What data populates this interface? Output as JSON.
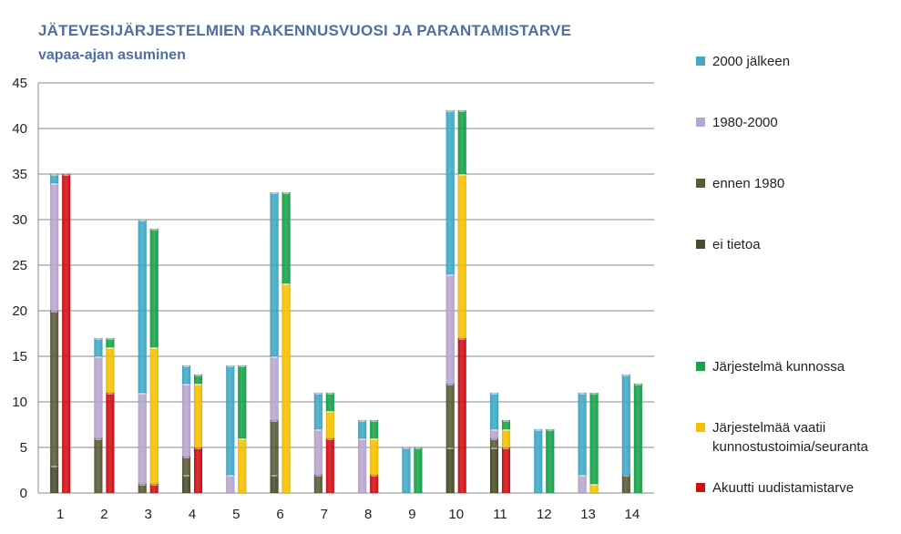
{
  "chart_data": {
    "type": "bar",
    "title": "JÄTEVESIJÄRJESTELMIEN RAKENNUSVUOSI JA PARANTAMISTARVE",
    "subtitle": "vapaa-ajan asuminen",
    "categories": [
      "1",
      "2",
      "3",
      "4",
      "5",
      "6",
      "7",
      "8",
      "9",
      "10",
      "11",
      "12",
      "13",
      "14"
    ],
    "ylim": [
      0,
      45
    ],
    "yticks": [
      0,
      5,
      10,
      15,
      20,
      25,
      30,
      35,
      40,
      45
    ],
    "grid": true,
    "legend_position": "right",
    "stacks": [
      {
        "name": "build_year",
        "series": [
          {
            "name": "ei tietoa",
            "color": "#4a4a2e",
            "values": [
              3,
              0,
              0,
              2,
              0,
              2,
              0,
              0,
              0,
              5,
              5,
              0,
              0,
              0
            ]
          },
          {
            "name": "ennen 1980",
            "color": "#5a5a38",
            "values": [
              17,
              6,
              1,
              2,
              0,
              6,
              2,
              0,
              0,
              7,
              1,
              0,
              0,
              2
            ]
          },
          {
            "name": "1980-2000",
            "color": "#b7a6cf",
            "values": [
              14,
              9,
              10,
              8,
              2,
              7,
              5,
              6,
              0,
              12,
              1,
              0,
              2,
              0
            ]
          },
          {
            "name": "2000 jälkeen",
            "color": "#3fa9c6",
            "values": [
              1,
              2,
              19,
              2,
              12,
              18,
              4,
              2,
              5,
              18,
              4,
              7,
              9,
              11
            ]
          }
        ]
      },
      {
        "name": "improvement_need",
        "series": [
          {
            "name": "Akuutti uudistamistarve",
            "color": "#d00f14",
            "values": [
              35,
              11,
              1,
              5,
              0,
              0,
              6,
              2,
              0,
              17,
              5,
              0,
              0,
              0
            ]
          },
          {
            "name": "Järjestelmää vaatii kunnostustoimia/seuranta",
            "color": "#f5c000",
            "values": [
              0,
              5,
              15,
              7,
              6,
              23,
              3,
              4,
              0,
              18,
              2,
              0,
              1,
              0
            ]
          },
          {
            "name": "Järjestelmä kunnossa",
            "color": "#17a34a",
            "values": [
              0,
              1,
              13,
              1,
              8,
              10,
              2,
              2,
              5,
              7,
              1,
              7,
              10,
              12
            ]
          }
        ]
      }
    ],
    "legend": [
      {
        "label": "2000 jälkeen",
        "color": "#3fa9c6"
      },
      {
        "label": "1980-2000",
        "color": "#b7a6cf"
      },
      {
        "label": "ennen 1980",
        "color": "#5a5a38"
      },
      {
        "label": "ei tietoa",
        "color": "#4a4a2e"
      },
      {
        "label": "Järjestelmä kunnossa",
        "color": "#17a34a"
      },
      {
        "label": "Järjestelmää vaatii kunnostustoimia/seuranta",
        "color": "#f5c000"
      },
      {
        "label": "Akuutti uudistamistarve",
        "color": "#d00f14"
      }
    ]
  }
}
